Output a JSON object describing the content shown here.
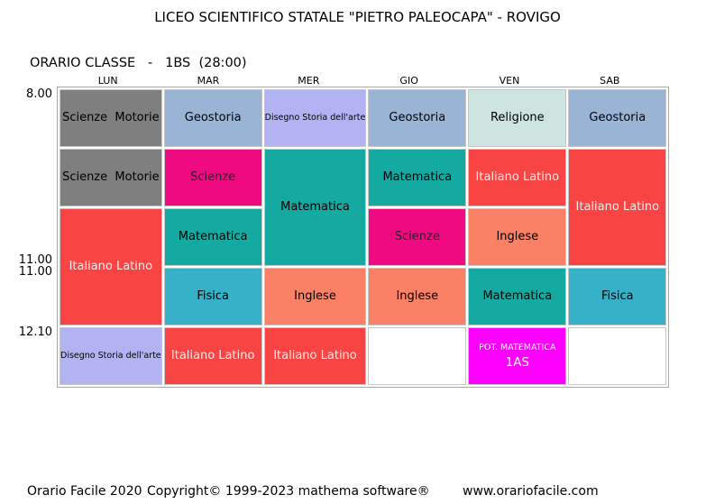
{
  "header": {
    "title": "LICEO SCIENTIFICO STATALE \"PIETRO PALEOCAPA\" - ROVIGO",
    "subtitle": "ORARIO CLASSE   -   1BS  (28:00)",
    "class_name": "1BS",
    "weekly_hours": "28:00"
  },
  "days": [
    "LUN",
    "MAR",
    "MER",
    "GIO",
    "VEN",
    "SAB"
  ],
  "time_labels": [
    "8.00",
    "11.00",
    "11.00",
    "12.10"
  ],
  "palette": {
    "scienze-motorie": {
      "bg": "#7f7f7f",
      "fg": "#000000"
    },
    "geostoria": {
      "bg": "#9ab4d6",
      "fg": "#000000"
    },
    "disegno": {
      "bg": "#b3b3f3",
      "fg": "#000000",
      "small": true
    },
    "religione": {
      "bg": "#cde4e0",
      "fg": "#000000"
    },
    "scienze": {
      "bg": "#f00a82",
      "fg": "#222222"
    },
    "matematica": {
      "bg": "#14a9a1",
      "fg": "#000000"
    },
    "italiano-latino": {
      "bg": "#f94444",
      "fg": "#ffeaea"
    },
    "fisica": {
      "bg": "#37b1c8",
      "fg": "#000000"
    },
    "inglese": {
      "bg": "#fa8165",
      "fg": "#000000"
    },
    "pot-matematica": {
      "bg": "#fd00fd",
      "fg": "#ffffff",
      "small": true
    }
  },
  "grid": {
    "rows": [
      [
        {
          "subject": "scienze-motorie",
          "label": "Scienze  Motorie"
        },
        {
          "subject": "geostoria",
          "label": "Geostoria"
        },
        {
          "subject": "disegno",
          "label": "Disegno Storia dell'arte"
        },
        {
          "subject": "geostoria",
          "label": "Geostoria"
        },
        {
          "subject": "religione",
          "label": "Religione"
        },
        {
          "subject": "geostoria",
          "label": "Geostoria"
        }
      ],
      [
        {
          "subject": "scienze-motorie",
          "label": "Scienze  Motorie"
        },
        {
          "subject": "scienze",
          "label": "Scienze"
        },
        {
          "subject": "matematica",
          "label": "Matematica",
          "rowspan": 2
        },
        {
          "subject": "matematica",
          "label": "Matematica"
        },
        {
          "subject": "italiano-latino",
          "label": "Italiano Latino"
        },
        {
          "subject": "italiano-latino",
          "label": "Italiano Latino",
          "rowspan": 2
        }
      ],
      [
        {
          "subject": "italiano-latino",
          "label": "Italiano Latino",
          "rowspan": 2
        },
        {
          "subject": "matematica",
          "label": "Matematica"
        },
        {
          "subject": "scienze",
          "label": "Scienze"
        },
        {
          "subject": "inglese",
          "label": "Inglese"
        }
      ],
      [
        {
          "subject": "fisica",
          "label": "Fisica"
        },
        {
          "subject": "inglese",
          "label": "Inglese"
        },
        {
          "subject": "inglese",
          "label": "Inglese"
        },
        {
          "subject": "matematica",
          "label": "Matematica"
        },
        {
          "subject": "fisica",
          "label": "Fisica"
        }
      ],
      [
        {
          "subject": "disegno",
          "label": "Disegno Storia dell'arte"
        },
        {
          "subject": "italiano-latino",
          "label": "Italiano Latino"
        },
        {
          "subject": "italiano-latino",
          "label": "Italiano Latino"
        },
        {
          "empty": true
        },
        {
          "subject": "pot-matematica",
          "label": "POT. MATEMATICA",
          "label2": "1AS"
        },
        {
          "empty": true
        }
      ]
    ]
  },
  "footer": {
    "app": "Orario Facile 2020",
    "copyright": "Copyright© 1999-2023 mathema software®",
    "site": "www.orariofacile.com"
  }
}
